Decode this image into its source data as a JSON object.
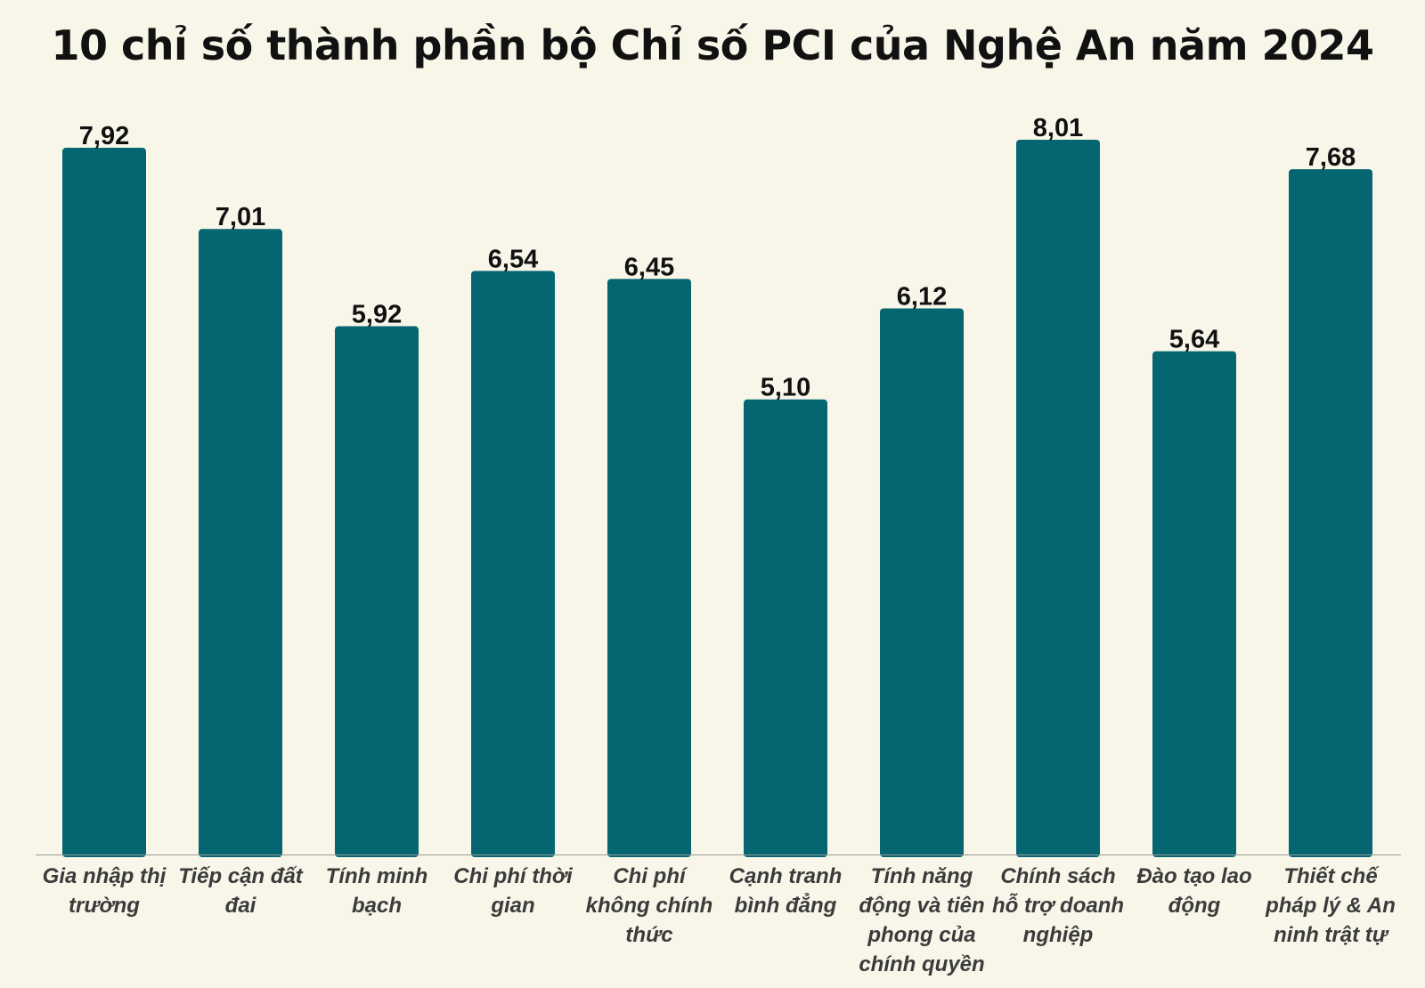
{
  "chart_data": {
    "type": "bar",
    "title": "10 chỉ số thành phần bộ Chỉ số PCI của Nghệ An năm 2024",
    "xlabel": "",
    "ylabel": "",
    "ylim": [
      0,
      8.01
    ],
    "grid": false,
    "legend": "none",
    "bar_color": "#056672",
    "categories": [
      "Gia nhập thị trường",
      "Tiếp cận đất đai",
      "Tính minh bạch",
      "Chi phí thời gian",
      "Chi phí không chính thức",
      "Cạnh tranh bình đẳng",
      "Tính năng động và tiên phong của chính quyền",
      "Chính sách hỗ trợ doanh nghiệp",
      "Đào tạo lao động",
      "Thiết chế pháp lý & An ninh trật tự"
    ],
    "category_lines": [
      [
        "Gia nhập thị",
        "trường"
      ],
      [
        "Tiếp cận đất",
        "đai"
      ],
      [
        "Tính minh",
        "bạch"
      ],
      [
        "Chi phí thời",
        "gian"
      ],
      [
        "Chi phí",
        "không chính",
        "thức"
      ],
      [
        "Cạnh tranh",
        "bình đẳng"
      ],
      [
        "Tính năng",
        "động và tiên",
        "phong của",
        "chính quyền"
      ],
      [
        "Chính sách",
        "hỗ trợ doanh",
        "nghiệp"
      ],
      [
        "Đào tạo lao",
        "động"
      ],
      [
        "Thiết chế",
        "pháp lý & An",
        "ninh trật tự"
      ]
    ],
    "values": [
      7.92,
      7.01,
      5.92,
      6.54,
      6.45,
      5.1,
      6.12,
      8.01,
      5.64,
      7.68
    ],
    "value_labels": [
      "7,92",
      "7,01",
      "5,92",
      "6,54",
      "6,45",
      "5,10",
      "6,12",
      "8,01",
      "5,64",
      "7,68"
    ]
  }
}
